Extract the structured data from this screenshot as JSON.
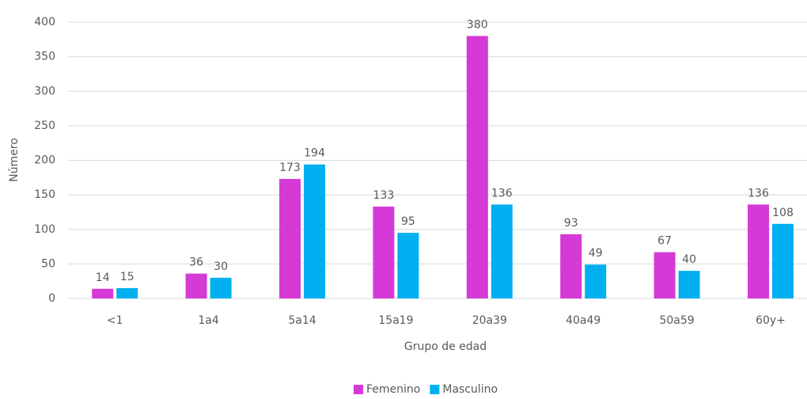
{
  "chart_data": {
    "type": "bar",
    "x_label": "Grupo de edad",
    "y_label": "Número",
    "categories": [
      "<1",
      "1a4",
      "5a14",
      "15a19",
      "20a39",
      "40a49",
      "50a59",
      "60y+"
    ],
    "series": [
      {
        "name": "Femenino",
        "color": "#d63ad6",
        "values": [
          14,
          36,
          173,
          133,
          380,
          93,
          67,
          136
        ]
      },
      {
        "name": "Masculino",
        "color": "#00b0f0",
        "values": [
          15,
          30,
          194,
          95,
          136,
          49,
          40,
          108
        ]
      }
    ],
    "ylim": [
      0,
      400
    ],
    "yticks": [
      0,
      50,
      100,
      150,
      200,
      250,
      300,
      350,
      400
    ],
    "grid": true,
    "legend": "bottom"
  }
}
